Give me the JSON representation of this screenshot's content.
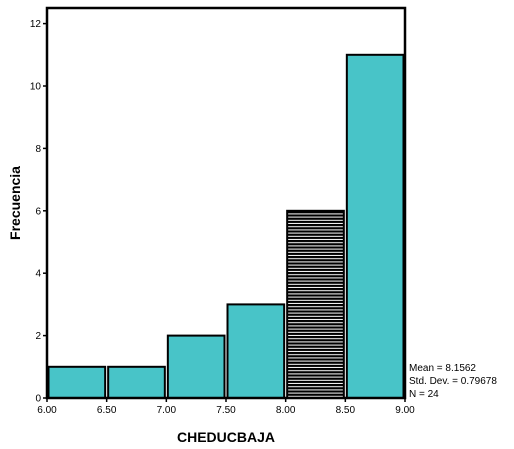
{
  "chart_data": {
    "type": "bar",
    "chart_kind": "histogram",
    "xlabel": "CHEDUCBAJA",
    "ylabel": "Frecuencia",
    "x_ticks": [
      "6.00",
      "6.50",
      "7.00",
      "7.50",
      "8.00",
      "8.50",
      "9.00"
    ],
    "x_tick_values": [
      6.0,
      6.5,
      7.0,
      7.5,
      8.0,
      8.5,
      9.0
    ],
    "y_ticks": [
      0,
      2,
      4,
      6,
      8,
      10,
      12
    ],
    "xlim": [
      6.0,
      9.0
    ],
    "ylim": [
      0,
      12.5
    ],
    "bins": [
      {
        "from": 6.0,
        "to": 6.5,
        "value": 1,
        "hatched": false
      },
      {
        "from": 6.5,
        "to": 7.0,
        "value": 1,
        "hatched": false
      },
      {
        "from": 7.0,
        "to": 7.5,
        "value": 2,
        "hatched": false
      },
      {
        "from": 7.5,
        "to": 8.0,
        "value": 3,
        "hatched": false
      },
      {
        "from": 8.0,
        "to": 8.5,
        "value": 6,
        "hatched": true
      },
      {
        "from": 8.5,
        "to": 9.0,
        "value": 11,
        "hatched": false
      }
    ],
    "bar_color": "#48c4c8",
    "stats": [
      "Mean = 8.1562",
      "Std. Dev. = 0.79678",
      "N = 24"
    ],
    "grid": false
  }
}
